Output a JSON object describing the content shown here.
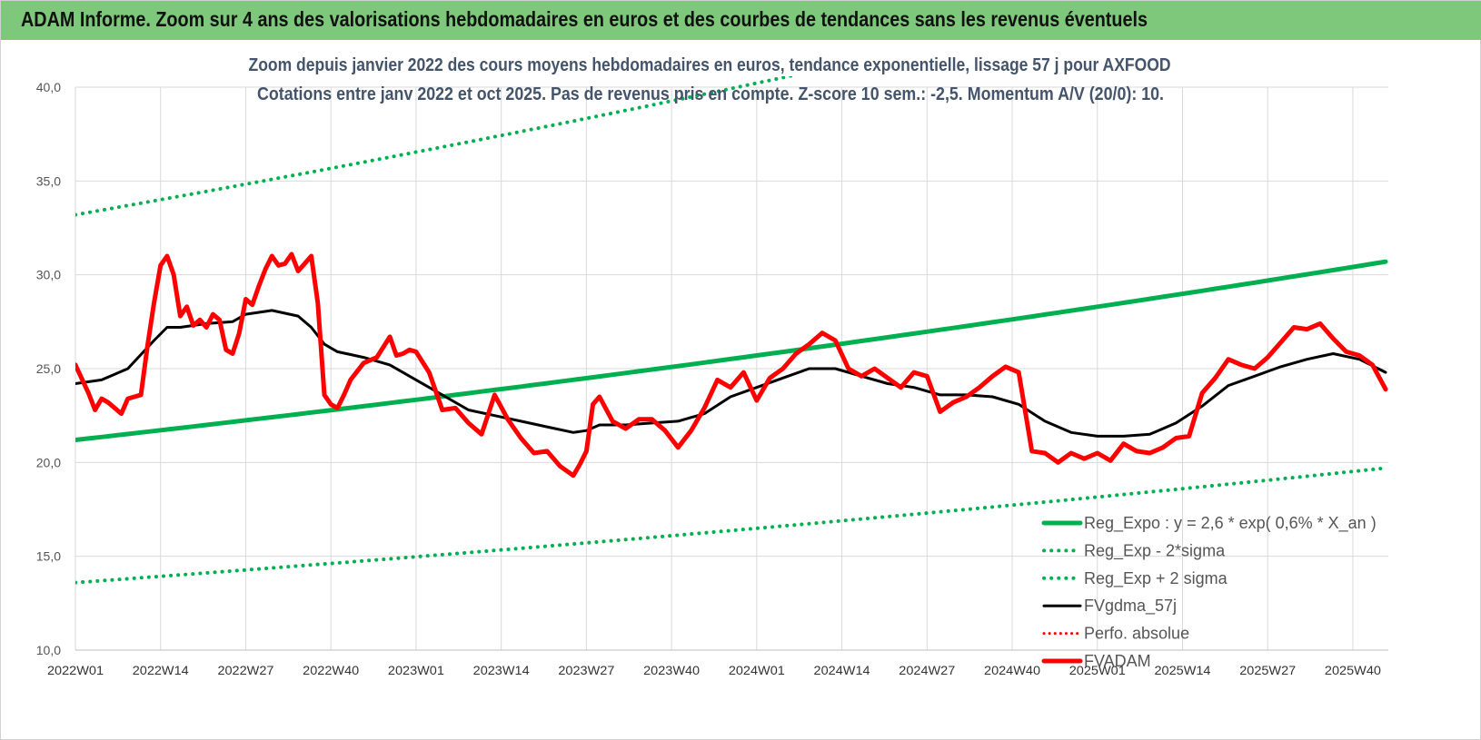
{
  "header": {
    "title": "ADAM Informe. Zoom sur 4 ans des valorisations hebdomadaires en euros et des courbes de tendances sans les revenus éventuels"
  },
  "colors": {
    "header_bg": "#7dc87a",
    "trend": "#00b050",
    "price": "#ff0000",
    "smooth": "#000000",
    "subtitle": "#44546a"
  },
  "chart_data": {
    "type": "line",
    "title_lines": [
      "Zoom depuis janvier 2022 des cours moyens hebdomadaires en euros, tendance exponentielle, lissage 57 j pour AXFOOD",
      "Cotations entre janv 2022 et oct 2025. Pas de revenus pris en compte. Z-score 10 sem.: -2,5. Momentum A/V (20/0): 10."
    ],
    "ylim": [
      10,
      40
    ],
    "y_ticks": [
      "10,0",
      "15,0",
      "20,0",
      "25,0",
      "30,0",
      "35,0",
      "40,0"
    ],
    "y_tick_values": [
      10,
      15,
      20,
      25,
      30,
      35,
      40
    ],
    "x_ticks": [
      "2022W01",
      "2022W14",
      "2022W27",
      "2022W40",
      "2023W01",
      "2023W14",
      "2023W27",
      "2023W40",
      "2024W01",
      "2024W14",
      "2024W27",
      "2024W40",
      "2025W01",
      "2025W14",
      "2025W27",
      "2025W40"
    ],
    "x_tick_index": [
      0,
      13,
      26,
      39,
      52,
      65,
      78,
      91,
      104,
      117,
      130,
      143,
      156,
      169,
      182,
      195
    ],
    "n_weeks": 201,
    "grid": true,
    "legend_position": "bottom-right",
    "legend": [
      "Reg_Expo : y = 2,6 * exp( 0,6% * X_an )",
      "Reg_Exp - 2*sigma",
      "Reg_Exp + 2 sigma",
      "FVgdma_57j",
      "Perfo. absolue",
      "FVADAM"
    ],
    "series": [
      {
        "name": "Reg_Expo : y = 2,6 * exp( 0,6% * X_an )",
        "style": "solid-green-thick",
        "x": [
          0,
          200
        ],
        "y": [
          21.2,
          30.7
        ]
      },
      {
        "name": "Reg_Exp - 2*sigma",
        "style": "dotted-green",
        "x": [
          0,
          200
        ],
        "y": [
          13.6,
          19.7
        ]
      },
      {
        "name": "Reg_Exp + 2 sigma",
        "style": "dotted-green",
        "x": [
          0,
          200
        ],
        "y": [
          33.2,
          48.0
        ]
      },
      {
        "name": "FVgdma_57j",
        "style": "solid-black",
        "x": [
          0,
          4,
          8,
          12,
          14,
          16,
          20,
          24,
          26,
          30,
          34,
          36,
          38,
          40,
          44,
          48,
          52,
          56,
          60,
          64,
          68,
          72,
          76,
          78,
          80,
          84,
          88,
          92,
          96,
          100,
          104,
          108,
          112,
          116,
          120,
          124,
          128,
          132,
          136,
          140,
          144,
          148,
          152,
          156,
          160,
          164,
          168,
          172,
          176,
          180,
          184,
          188,
          192,
          196,
          200
        ],
        "y": [
          24.2,
          24.4,
          25.0,
          26.5,
          27.2,
          27.2,
          27.4,
          27.5,
          27.9,
          28.1,
          27.8,
          27.2,
          26.3,
          25.9,
          25.6,
          25.2,
          24.4,
          23.6,
          22.8,
          22.5,
          22.2,
          21.9,
          21.6,
          21.7,
          22.0,
          22.0,
          22.1,
          22.2,
          22.6,
          23.5,
          24.0,
          24.5,
          25.0,
          25.0,
          24.6,
          24.2,
          24.0,
          23.6,
          23.6,
          23.5,
          23.1,
          22.2,
          21.6,
          21.4,
          21.4,
          21.5,
          22.1,
          23.0,
          24.1,
          24.6,
          25.1,
          25.5,
          25.8,
          25.5,
          24.8
        ]
      },
      {
        "name": "Perfo. absolue",
        "style": "dotted-red",
        "x": [],
        "y": []
      },
      {
        "name": "FVADAM",
        "style": "solid-red-thick",
        "x": [
          0,
          2,
          3,
          4,
          5,
          7,
          8,
          10,
          11,
          12,
          13,
          14,
          15,
          16,
          17,
          18,
          19,
          20,
          21,
          22,
          23,
          24,
          25,
          26,
          27,
          28,
          29,
          30,
          31,
          32,
          33,
          34,
          35,
          36,
          37,
          38,
          39,
          40,
          41,
          42,
          44,
          46,
          48,
          49,
          50,
          51,
          52,
          54,
          56,
          58,
          60,
          62,
          64,
          66,
          68,
          70,
          72,
          74,
          76,
          77,
          78,
          79,
          80,
          82,
          84,
          86,
          88,
          90,
          92,
          94,
          96,
          98,
          100,
          102,
          104,
          106,
          108,
          110,
          112,
          114,
          116,
          118,
          120,
          122,
          124,
          126,
          128,
          130,
          132,
          134,
          136,
          138,
          140,
          142,
          144,
          146,
          148,
          150,
          152,
          154,
          156,
          158,
          160,
          162,
          164,
          166,
          168,
          170,
          172,
          174,
          176,
          178,
          180,
          182,
          184,
          186,
          188,
          190,
          192,
          194,
          196,
          198,
          200
        ],
        "y": [
          25.2,
          23.7,
          22.8,
          23.4,
          23.2,
          22.6,
          23.4,
          23.6,
          26.2,
          28.5,
          30.5,
          31.0,
          30.0,
          27.8,
          28.3,
          27.3,
          27.6,
          27.2,
          27.9,
          27.6,
          26.0,
          25.8,
          26.9,
          28.7,
          28.4,
          29.4,
          30.3,
          31.0,
          30.5,
          30.6,
          31.1,
          30.2,
          30.6,
          31.0,
          28.5,
          23.6,
          23.1,
          22.9,
          23.6,
          24.4,
          25.3,
          25.6,
          26.7,
          25.7,
          25.8,
          26.0,
          25.9,
          24.8,
          22.8,
          22.9,
          22.1,
          21.5,
          23.6,
          22.3,
          21.3,
          20.5,
          20.6,
          19.8,
          19.3,
          19.9,
          20.6,
          23.1,
          23.5,
          22.2,
          21.8,
          22.3,
          22.3,
          21.7,
          20.8,
          21.7,
          22.9,
          24.4,
          24.0,
          24.8,
          23.3,
          24.5,
          25.0,
          25.8,
          26.3,
          26.9,
          26.5,
          25.0,
          24.6,
          25.0,
          24.5,
          24.0,
          24.8,
          24.6,
          22.7,
          23.2,
          23.5,
          24.0,
          24.6,
          25.1,
          24.8,
          20.6,
          20.5,
          20.0,
          20.5,
          20.2,
          20.5,
          20.1,
          21.0,
          20.6,
          20.5,
          20.8,
          21.3,
          21.4,
          23.7,
          24.5,
          25.5,
          25.2,
          25.0,
          25.6,
          26.4,
          27.2,
          27.1,
          27.4,
          26.6,
          25.9,
          25.7,
          25.2,
          23.9
        ]
      }
    ]
  }
}
